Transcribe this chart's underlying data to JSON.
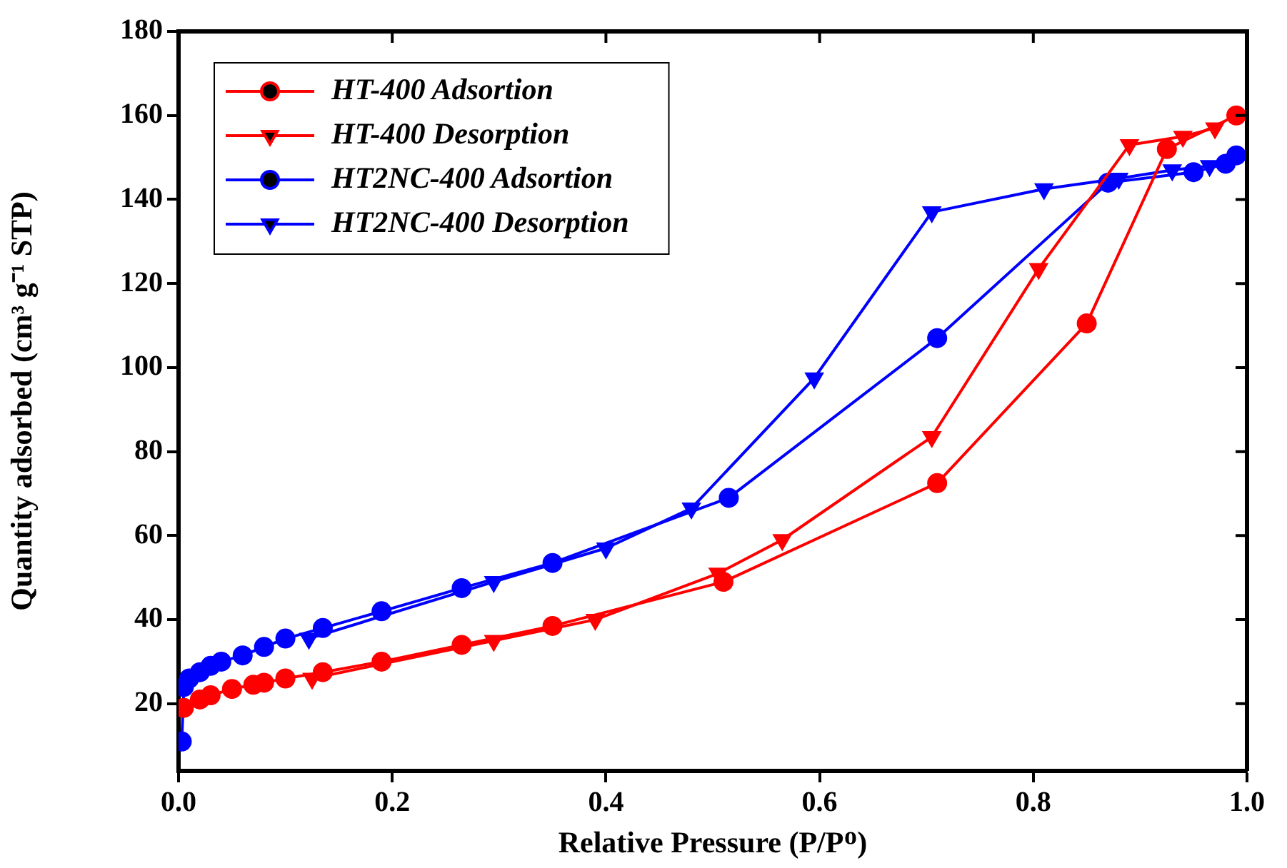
{
  "chart_data": {
    "type": "line",
    "xlabel": "Relative Pressure (P/Pᴼ)",
    "ylabel": "Quantity adsorbed (cm³ g⁻¹ STP)",
    "xlim": [
      0,
      1
    ],
    "xticks": [
      {
        "value": 0,
        "label": "0.0"
      },
      {
        "value": 0.2,
        "label": "0.2"
      },
      {
        "value": 0.4,
        "label": "0.4"
      },
      {
        "value": 0.6,
        "label": "0.6"
      },
      {
        "value": 0.8,
        "label": "0.8"
      },
      {
        "value": 1,
        "label": "1.0"
      }
    ],
    "ylim": [
      4,
      180
    ],
    "yticks": [
      20,
      40,
      60,
      80,
      100,
      120,
      140,
      160,
      180
    ],
    "grid": false,
    "legend": "top left",
    "line_style": "solid",
    "series": [
      {
        "name": "HT-400 Adsortion",
        "color": "#ff0000",
        "marker": "circle",
        "x": [
          0.005,
          0.02,
          0.03,
          0.05,
          0.07,
          0.08,
          0.1,
          0.135,
          0.19,
          0.265,
          0.35,
          0.51,
          0.71,
          0.85,
          0.925,
          0.99
        ],
        "values": [
          19,
          21,
          22,
          23.5,
          24.5,
          25,
          26,
          27.5,
          30,
          34,
          38.5,
          49,
          72.5,
          110.5,
          152,
          160
        ]
      },
      {
        "name": "HT-400 Desorption",
        "color": "#ff0000",
        "marker": "triangle",
        "x": [
          0.97,
          0.94,
          0.89,
          0.805,
          0.705,
          0.565,
          0.505,
          0.39,
          0.295,
          0.125
        ],
        "values": [
          157,
          155,
          153,
          123.5,
          83.5,
          59,
          51,
          40,
          35,
          26
        ]
      },
      {
        "name": "HT2NC-400 Adsortion",
        "color": "#0000ff",
        "marker": "circle",
        "x": [
          0.003,
          0.005,
          0.01,
          0.02,
          0.03,
          0.04,
          0.06,
          0.08,
          0.1,
          0.135,
          0.19,
          0.265,
          0.35,
          0.515,
          0.71,
          0.87,
          0.95,
          0.98,
          0.99
        ],
        "values": [
          11,
          24,
          26,
          27.5,
          29,
          30,
          31.5,
          33.5,
          35.5,
          38,
          42,
          47.5,
          53.5,
          69,
          107,
          144,
          146.5,
          148.5,
          150.5
        ]
      },
      {
        "name": "HT2NC-400 Desorption",
        "color": "#0000ff",
        "marker": "triangle",
        "x": [
          0.965,
          0.93,
          0.88,
          0.81,
          0.705,
          0.595,
          0.48,
          0.4,
          0.295,
          0.122
        ],
        "values": [
          148,
          147,
          145,
          142.5,
          137,
          97.5,
          66.5,
          57,
          49,
          35.5
        ]
      }
    ]
  }
}
